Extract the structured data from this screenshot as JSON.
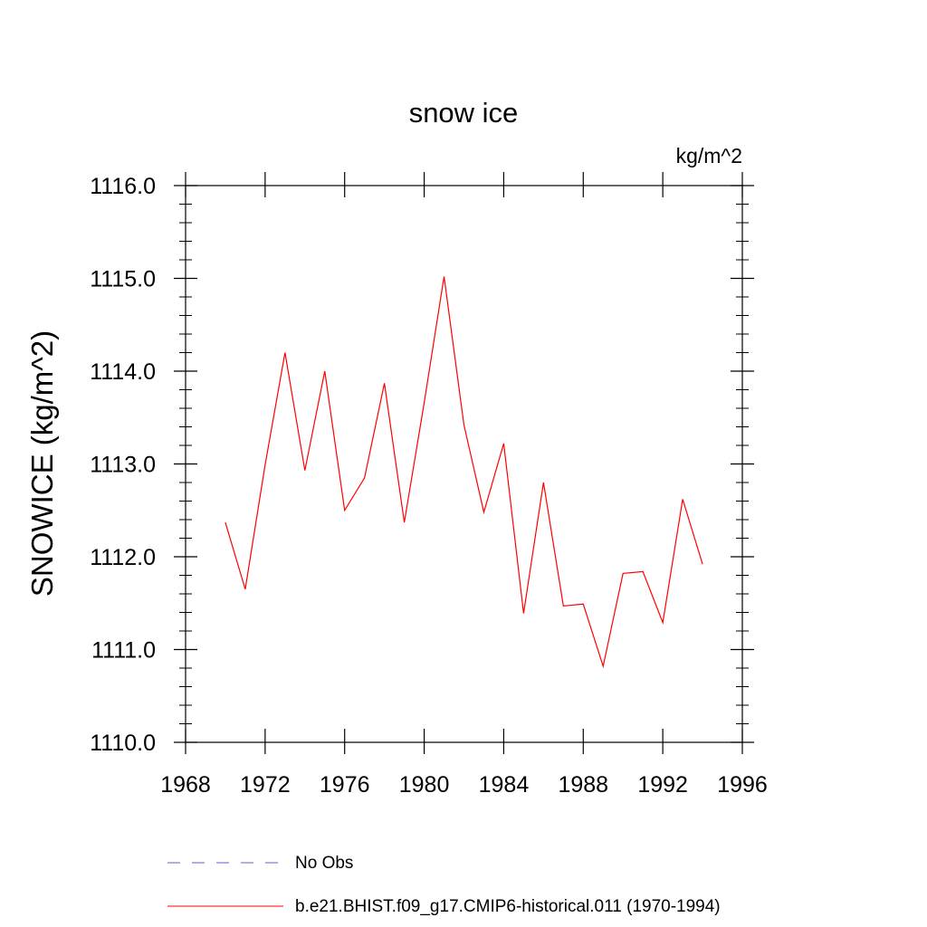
{
  "chart_data": {
    "type": "line",
    "title": "snow ice",
    "units": "kg/m^2",
    "ylabel": "SNOWICE  (kg/m^2)",
    "xlabel": "",
    "xlim": [
      1968,
      1996
    ],
    "ylim": [
      1110.0,
      1116.0
    ],
    "x_ticks": [
      1968,
      1972,
      1976,
      1980,
      1984,
      1988,
      1992,
      1996
    ],
    "x_tick_labels": [
      "1968",
      "1972",
      "1976",
      "1980",
      "1984",
      "1988",
      "1992",
      "1996"
    ],
    "y_ticks": [
      1110.0,
      1111.0,
      1112.0,
      1113.0,
      1114.0,
      1115.0,
      1116.0
    ],
    "y_tick_labels": [
      "1110.0",
      "1111.0",
      "1112.0",
      "1113.0",
      "1114.0",
      "1115.0",
      "1116.0"
    ],
    "grid": false,
    "legend_position": "bottom",
    "series": [
      {
        "name": "b.e21.BHIST.f09_g17.CMIP6-historical.011 (1970-1994)",
        "color": "#ff0000",
        "style": "solid",
        "x": [
          1970,
          1971,
          1972,
          1973,
          1974,
          1975,
          1976,
          1977,
          1978,
          1979,
          1980,
          1981,
          1982,
          1983,
          1984,
          1985,
          1986,
          1987,
          1988,
          1989,
          1990,
          1991,
          1992,
          1993,
          1994
        ],
        "values": [
          1112.37,
          1111.65,
          1112.99,
          1114.2,
          1112.93,
          1114.0,
          1112.5,
          1112.85,
          1113.87,
          1112.37,
          1113.66,
          1115.02,
          1113.42,
          1112.48,
          1113.22,
          1111.39,
          1112.8,
          1111.47,
          1111.49,
          1110.82,
          1111.82,
          1111.84,
          1111.29,
          1112.62,
          1111.92
        ]
      }
    ],
    "legend": [
      {
        "label": "No Obs",
        "color": "#6a5acd",
        "style": "dashed"
      },
      {
        "label": "b.e21.BHIST.f09_g17.CMIP6-historical.011 (1970-1994)",
        "color": "#ff0000",
        "style": "solid"
      }
    ]
  }
}
